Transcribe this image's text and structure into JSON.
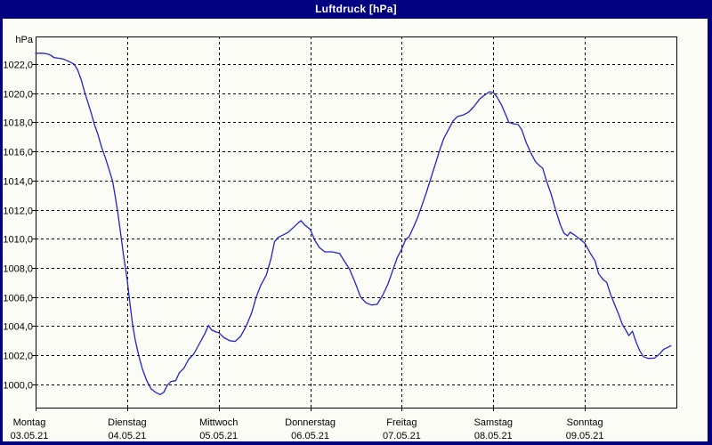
{
  "window": {
    "title": "Luftdruck [hPa]"
  },
  "colors": {
    "frame": "#000080",
    "title_text": "#ffffff",
    "background": "#fcfcf7",
    "grid": "#000000",
    "axis": "#000000",
    "line": "#2222cc",
    "label": "#000000"
  },
  "chart_data": {
    "type": "line",
    "title": "Luftdruck [hPa]",
    "ylabel": "hPa",
    "unit_label": "hPa",
    "grid": "dashed",
    "legend": "none",
    "ylim": [
      998.4,
      1023.9
    ],
    "xlim_days": [
      0,
      7
    ],
    "y_ticks": [
      {
        "value": 1022,
        "label": "1022,0"
      },
      {
        "value": 1020,
        "label": "1020,0"
      },
      {
        "value": 1018,
        "label": "1018,0"
      },
      {
        "value": 1016,
        "label": "1016,0"
      },
      {
        "value": 1014,
        "label": "1014,0"
      },
      {
        "value": 1012,
        "label": "1012,0"
      },
      {
        "value": 1010,
        "label": "1010,0"
      },
      {
        "value": 1008,
        "label": "1008,0"
      },
      {
        "value": 1006,
        "label": "1006,0"
      },
      {
        "value": 1004,
        "label": "1004,0"
      },
      {
        "value": 1002,
        "label": "1002,0"
      },
      {
        "value": 1000,
        "label": "1000,0"
      }
    ],
    "x_days": [
      {
        "name": "Montag",
        "date": "03.05.21"
      },
      {
        "name": "Dienstag",
        "date": "04.05.21"
      },
      {
        "name": "Mittwoch",
        "date": "05.05.21"
      },
      {
        "name": "Donnerstag",
        "date": "06.05.21"
      },
      {
        "name": "Freitag",
        "date": "07.05.21"
      },
      {
        "name": "Samstag",
        "date": "08.05.21"
      },
      {
        "name": "Sonntag",
        "date": "09.05.21"
      }
    ],
    "series": [
      {
        "name": "Luftdruck",
        "points": [
          [
            0.0,
            1022.75
          ],
          [
            0.08,
            1022.75
          ],
          [
            0.13,
            1022.7
          ],
          [
            0.17,
            1022.6
          ],
          [
            0.2,
            1022.45
          ],
          [
            0.26,
            1022.4
          ],
          [
            0.3,
            1022.35
          ],
          [
            0.36,
            1022.2
          ],
          [
            0.42,
            1022.0
          ],
          [
            0.46,
            1021.6
          ],
          [
            0.5,
            1020.9
          ],
          [
            0.53,
            1020.2
          ],
          [
            0.57,
            1019.4
          ],
          [
            0.61,
            1018.6
          ],
          [
            0.64,
            1017.9
          ],
          [
            0.68,
            1017.2
          ],
          [
            0.72,
            1016.3
          ],
          [
            0.76,
            1015.6
          ],
          [
            0.8,
            1014.8
          ],
          [
            0.84,
            1014.0
          ],
          [
            0.87,
            1012.9
          ],
          [
            0.9,
            1011.7
          ],
          [
            0.93,
            1010.3
          ],
          [
            0.96,
            1008.9
          ],
          [
            1.0,
            1007.2
          ],
          [
            1.03,
            1005.6
          ],
          [
            1.06,
            1004.1
          ],
          [
            1.09,
            1003.0
          ],
          [
            1.13,
            1001.9
          ],
          [
            1.17,
            1001.0
          ],
          [
            1.21,
            1000.3
          ],
          [
            1.26,
            999.7
          ],
          [
            1.31,
            999.45
          ],
          [
            1.36,
            999.3
          ],
          [
            1.4,
            999.45
          ],
          [
            1.44,
            999.95
          ],
          [
            1.48,
            1000.2
          ],
          [
            1.53,
            1000.25
          ],
          [
            1.57,
            1000.8
          ],
          [
            1.62,
            1001.1
          ],
          [
            1.67,
            1001.7
          ],
          [
            1.73,
            1002.1
          ],
          [
            1.79,
            1002.8
          ],
          [
            1.85,
            1003.5
          ],
          [
            1.89,
            1004.05
          ],
          [
            1.92,
            1003.75
          ],
          [
            1.97,
            1003.6
          ],
          [
            2.0,
            1003.55
          ],
          [
            2.06,
            1003.2
          ],
          [
            2.12,
            1003.0
          ],
          [
            2.18,
            1002.95
          ],
          [
            2.24,
            1003.3
          ],
          [
            2.3,
            1004.0
          ],
          [
            2.36,
            1004.9
          ],
          [
            2.41,
            1006.0
          ],
          [
            2.46,
            1006.8
          ],
          [
            2.52,
            1007.5
          ],
          [
            2.57,
            1008.6
          ],
          [
            2.61,
            1009.8
          ],
          [
            2.65,
            1010.1
          ],
          [
            2.7,
            1010.25
          ],
          [
            2.76,
            1010.45
          ],
          [
            2.82,
            1010.8
          ],
          [
            2.87,
            1011.1
          ],
          [
            2.9,
            1011.25
          ],
          [
            2.94,
            1010.95
          ],
          [
            3.0,
            1010.65
          ],
          [
            3.05,
            1009.9
          ],
          [
            3.1,
            1009.4
          ],
          [
            3.16,
            1009.1
          ],
          [
            3.24,
            1009.1
          ],
          [
            3.32,
            1009.0
          ],
          [
            3.38,
            1008.4
          ],
          [
            3.43,
            1007.9
          ],
          [
            3.49,
            1007.0
          ],
          [
            3.55,
            1006.0
          ],
          [
            3.61,
            1005.6
          ],
          [
            3.67,
            1005.45
          ],
          [
            3.73,
            1005.5
          ],
          [
            3.79,
            1006.1
          ],
          [
            3.85,
            1006.9
          ],
          [
            3.9,
            1007.8
          ],
          [
            3.95,
            1008.7
          ],
          [
            4.0,
            1009.3
          ],
          [
            4.04,
            1009.9
          ],
          [
            4.08,
            1010.15
          ],
          [
            4.12,
            1010.7
          ],
          [
            4.17,
            1011.4
          ],
          [
            4.22,
            1012.3
          ],
          [
            4.27,
            1013.2
          ],
          [
            4.32,
            1014.2
          ],
          [
            4.37,
            1015.2
          ],
          [
            4.42,
            1016.2
          ],
          [
            4.46,
            1016.9
          ],
          [
            4.51,
            1017.5
          ],
          [
            4.56,
            1018.1
          ],
          [
            4.61,
            1018.4
          ],
          [
            4.67,
            1018.5
          ],
          [
            4.73,
            1018.7
          ],
          [
            4.79,
            1019.1
          ],
          [
            4.85,
            1019.6
          ],
          [
            4.91,
            1019.9
          ],
          [
            4.96,
            1020.1
          ],
          [
            5.0,
            1020.05
          ],
          [
            5.04,
            1019.75
          ],
          [
            5.09,
            1019.2
          ],
          [
            5.13,
            1018.6
          ],
          [
            5.17,
            1018.0
          ],
          [
            5.22,
            1017.9
          ],
          [
            5.27,
            1017.85
          ],
          [
            5.31,
            1017.5
          ],
          [
            5.36,
            1016.6
          ],
          [
            5.41,
            1015.9
          ],
          [
            5.46,
            1015.3
          ],
          [
            5.5,
            1015.05
          ],
          [
            5.54,
            1014.85
          ],
          [
            5.58,
            1014.0
          ],
          [
            5.63,
            1013.1
          ],
          [
            5.68,
            1012.0
          ],
          [
            5.73,
            1011.0
          ],
          [
            5.77,
            1010.4
          ],
          [
            5.81,
            1010.2
          ],
          [
            5.84,
            1010.45
          ],
          [
            5.89,
            1010.25
          ],
          [
            5.94,
            1010.0
          ],
          [
            6.0,
            1009.7
          ],
          [
            6.06,
            1009.0
          ],
          [
            6.11,
            1008.5
          ],
          [
            6.15,
            1007.6
          ],
          [
            6.2,
            1007.2
          ],
          [
            6.24,
            1007.0
          ],
          [
            6.28,
            1006.2
          ],
          [
            6.33,
            1005.4
          ],
          [
            6.37,
            1004.8
          ],
          [
            6.41,
            1004.1
          ],
          [
            6.45,
            1003.7
          ],
          [
            6.48,
            1003.35
          ],
          [
            6.52,
            1003.65
          ],
          [
            6.56,
            1002.9
          ],
          [
            6.6,
            1002.3
          ],
          [
            6.64,
            1001.9
          ],
          [
            6.69,
            1001.78
          ],
          [
            6.76,
            1001.8
          ],
          [
            6.81,
            1002.05
          ],
          [
            6.86,
            1002.4
          ],
          [
            6.91,
            1002.55
          ],
          [
            6.94,
            1002.65
          ]
        ]
      }
    ]
  }
}
